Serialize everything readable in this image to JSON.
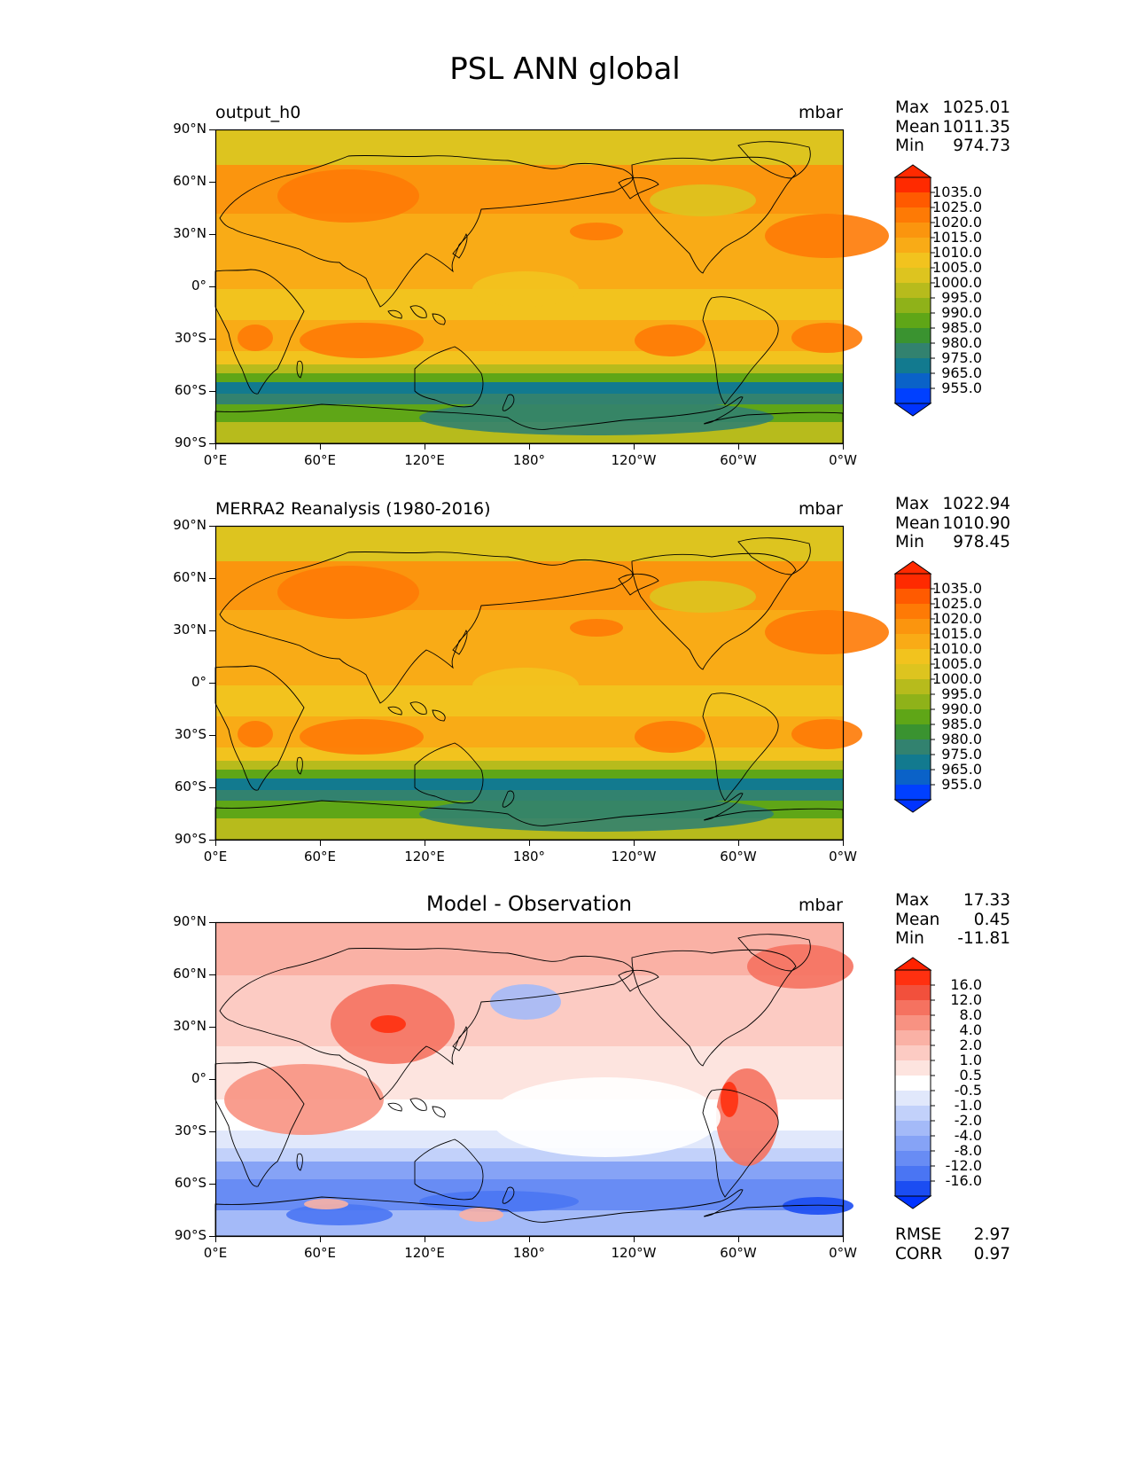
{
  "figure": {
    "title": "PSL ANN global"
  },
  "axes": {
    "lat_ticks": [
      "90°N",
      "60°N",
      "30°N",
      "0°",
      "30°S",
      "60°S",
      "90°S"
    ],
    "lon_ticks": [
      "0°E",
      "60°E",
      "120°E",
      "180°",
      "120°W",
      "60°W",
      "0°W"
    ]
  },
  "panels": [
    {
      "left_title": "output_h0",
      "center_title": "",
      "units": "mbar",
      "stats": [
        {
          "label": "Max",
          "value": "1025.01"
        },
        {
          "label": "Mean",
          "value": "1011.35"
        },
        {
          "label": "Min",
          "value": "974.73"
        }
      ],
      "colorbar": {
        "labels": [
          "1035.0",
          "1025.0",
          "1020.0",
          "1015.0",
          "1010.0",
          "1005.0",
          "1000.0",
          "995.0",
          "990.0",
          "985.0",
          "980.0",
          "975.0",
          "965.0",
          "955.0"
        ],
        "colors": [
          "#ff2a00",
          "#ff5a00",
          "#fe7a05",
          "#fb950e",
          "#f9ab16",
          "#f2c31e",
          "#ddc41f",
          "#b7bb1c",
          "#8fb219",
          "#5fa617",
          "#3a9330",
          "#32826f",
          "#127a8f",
          "#0a62c8",
          "#0040ff"
        ],
        "over_color": "#ff2a00",
        "under_color": "#0033ff"
      },
      "extra_stats": []
    },
    {
      "left_title": "MERRA2 Reanalysis (1980-2016)",
      "center_title": "",
      "units": "mbar",
      "stats": [
        {
          "label": "Max",
          "value": "1022.94"
        },
        {
          "label": "Mean",
          "value": "1010.90"
        },
        {
          "label": "Min",
          "value": "978.45"
        }
      ],
      "colorbar": {
        "labels": [
          "1035.0",
          "1025.0",
          "1020.0",
          "1015.0",
          "1010.0",
          "1005.0",
          "1000.0",
          "995.0",
          "990.0",
          "985.0",
          "980.0",
          "975.0",
          "965.0",
          "955.0"
        ],
        "colors": [
          "#ff2a00",
          "#ff5a00",
          "#fe7a05",
          "#fb950e",
          "#f9ab16",
          "#f2c31e",
          "#ddc41f",
          "#b7bb1c",
          "#8fb219",
          "#5fa617",
          "#3a9330",
          "#32826f",
          "#127a8f",
          "#0a62c8",
          "#0040ff"
        ],
        "over_color": "#ff2a00",
        "under_color": "#0033ff"
      },
      "extra_stats": []
    },
    {
      "left_title": "",
      "center_title": "Model - Observation",
      "units": "mbar",
      "stats": [
        {
          "label": "Max",
          "value": "17.33"
        },
        {
          "label": "Mean",
          "value": "0.45"
        },
        {
          "label": "Min",
          "value": "-11.81"
        }
      ],
      "colorbar": {
        "labels": [
          "16.0",
          "12.0",
          "8.0",
          "4.0",
          "2.0",
          "1.0",
          "0.5",
          "-0.5",
          "-1.0",
          "-2.0",
          "-4.0",
          "-8.0",
          "-12.0",
          "-16.0"
        ],
        "colors": [
          "#ff3010",
          "#f2503c",
          "#f57260",
          "#f89282",
          "#fab1a5",
          "#fccbc3",
          "#fde4df",
          "#ffffff",
          "#e1e8fb",
          "#c2d1fa",
          "#a4baf8",
          "#86a3f6",
          "#688cf4",
          "#4a75f3",
          "#1b4df2"
        ],
        "over_color": "#ff2200",
        "under_color": "#0033ff"
      },
      "extra_stats": [
        {
          "label": "RMSE",
          "value": "2.97"
        },
        {
          "label": "CORR",
          "value": "0.97"
        }
      ]
    }
  ]
}
